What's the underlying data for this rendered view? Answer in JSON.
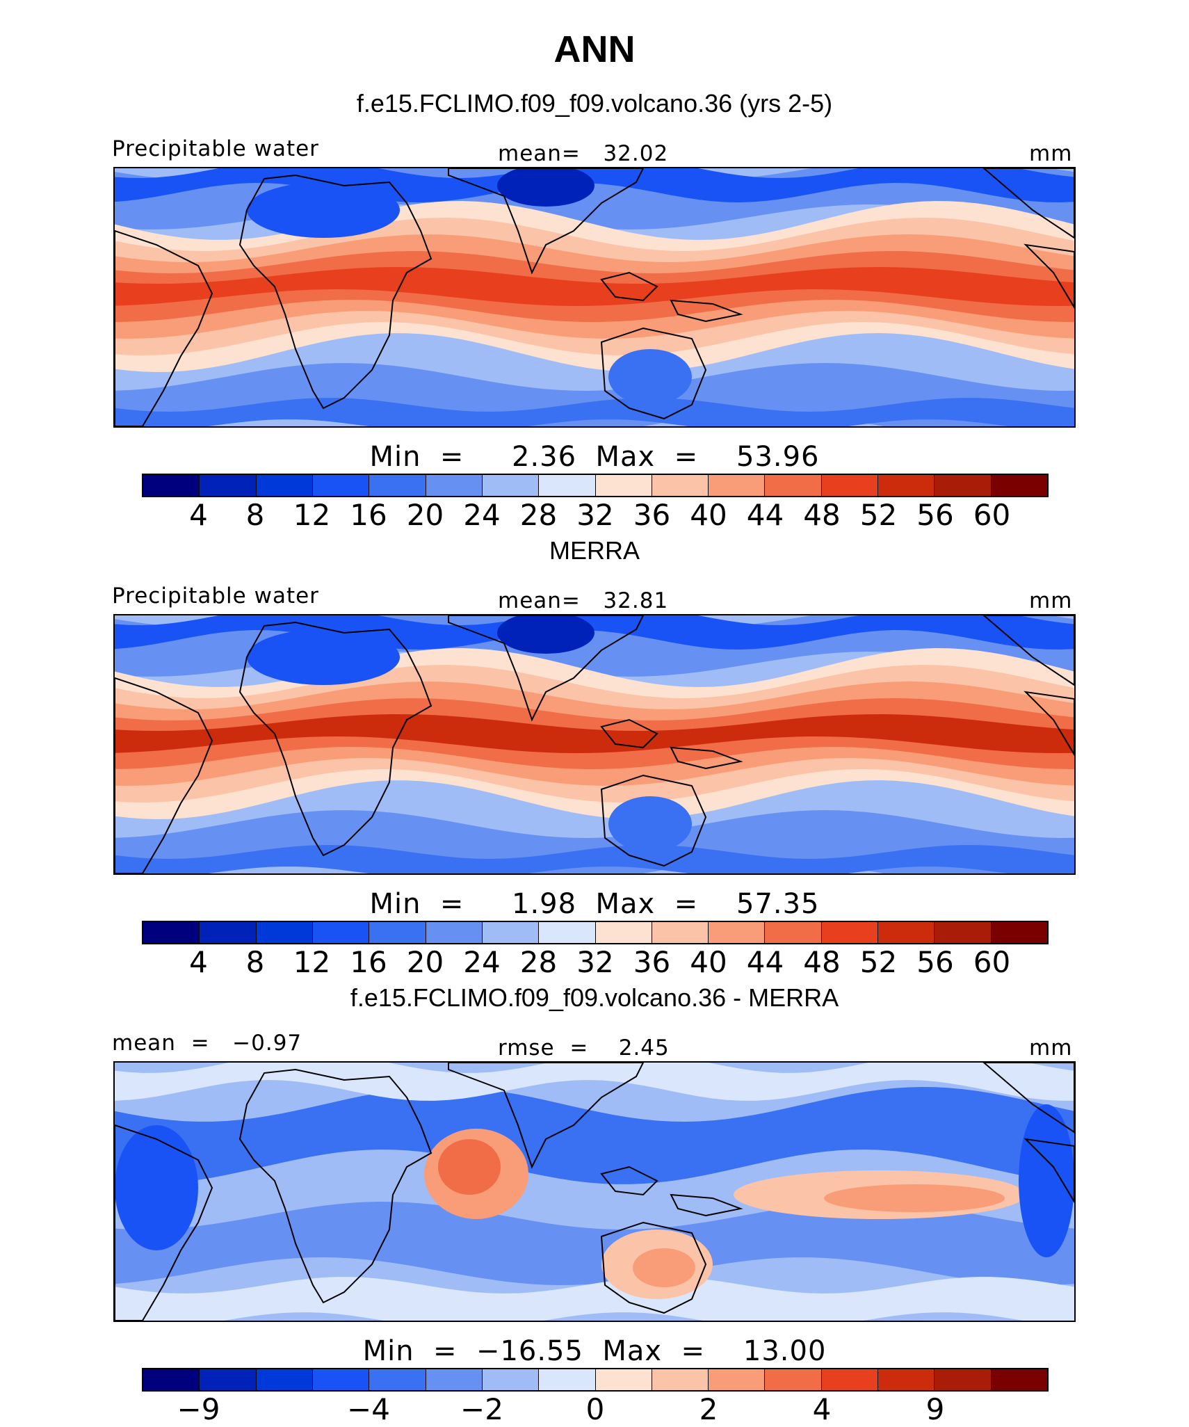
{
  "title": "ANN",
  "colors": {
    "palette": [
      "#00007f",
      "#0022b8",
      "#0039d9",
      "#1a53f5",
      "#3a70f2",
      "#6690f2",
      "#a0bcf7",
      "#d9e6fb",
      "#fde2d2",
      "#fbc4a8",
      "#f89d78",
      "#f06d47",
      "#e8401e",
      "#cc2c0c",
      "#a81c08",
      "#7a0000"
    ],
    "land_outline": "#000000"
  },
  "panels": [
    {
      "title": "f.e15.FCLIMO.f09_f09.volcano.36 (yrs 2-5)",
      "left_label": "Precipitable water",
      "center_label": "mean=   32.02",
      "right_label": "mm",
      "minmax": "Min  =     2.36  Max  =    53.96",
      "colorbar_ticks": [
        "4",
        "8",
        "12",
        "16",
        "20",
        "24",
        "28",
        "32",
        "36",
        "40",
        "44",
        "48",
        "52",
        "56",
        "60"
      ],
      "map_kind": "field",
      "warm_band": 0.55
    },
    {
      "title": "MERRA",
      "left_label": "Precipitable water",
      "center_label": "mean=   32.81",
      "right_label": "mm",
      "minmax": "Min  =     1.98  Max  =    57.35",
      "colorbar_ticks": [
        "4",
        "8",
        "12",
        "16",
        "20",
        "24",
        "28",
        "32",
        "36",
        "40",
        "44",
        "48",
        "52",
        "56",
        "60"
      ],
      "map_kind": "field",
      "warm_band": 0.62
    },
    {
      "title": "f.e15.FCLIMO.f09_f09.volcano.36 - MERRA",
      "left_label": "mean  =   −0.97",
      "center_label": "rmse  =    2.45",
      "right_label": "mm",
      "minmax": "Min  =  −16.55  Max  =    13.00",
      "colorbar_ticks": [
        "−9",
        "−4",
        "−2",
        "0",
        "2",
        "4",
        "9"
      ],
      "map_kind": "diff",
      "warm_band": 0.4
    }
  ]
}
